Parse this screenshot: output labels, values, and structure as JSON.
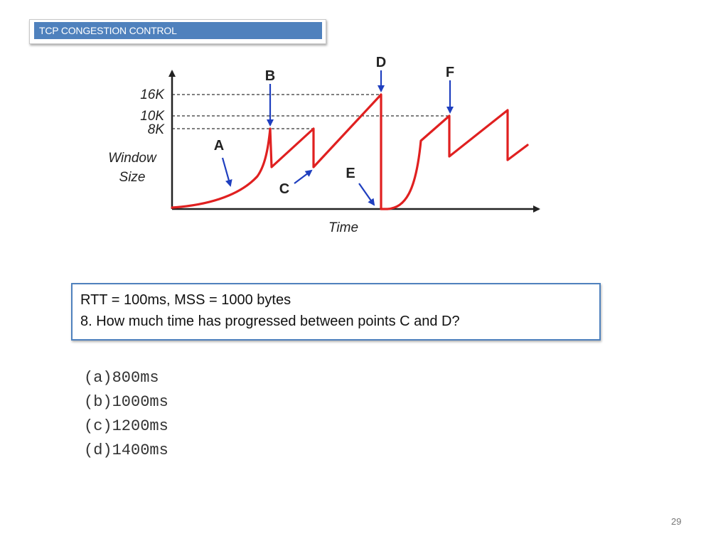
{
  "header": {
    "title": "TCP CONGESTION CONTROL",
    "accent_color": "#4f81bd"
  },
  "diagram": {
    "y_axis_label_line1": "Window",
    "y_axis_label_line2": "Size",
    "x_axis_label": "Time",
    "y_ticks": [
      "16K",
      "10K",
      "8K"
    ],
    "points": [
      "A",
      "B",
      "C",
      "D",
      "E",
      "F"
    ],
    "curve_color": "#e02020",
    "arrow_color": "#1f3fbf"
  },
  "question": {
    "line1": "RTT = 100ms, MSS = 1000 bytes",
    "line2": "8. How much time has progressed between points C and D?"
  },
  "options": [
    {
      "key": "(a)",
      "text": "800ms"
    },
    {
      "key": "(b)",
      "text": "1000ms"
    },
    {
      "key": "(c)",
      "text": "1200ms"
    },
    {
      "key": "(d)",
      "text": "1400ms"
    }
  ],
  "page_number": "29"
}
